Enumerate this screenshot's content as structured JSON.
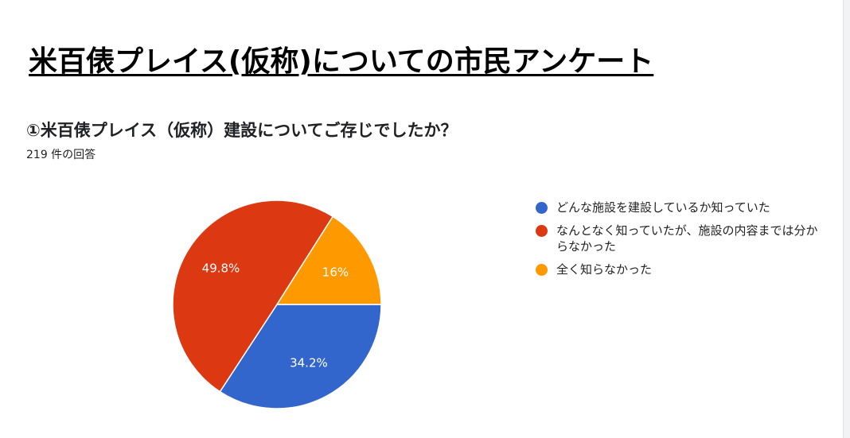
{
  "page": {
    "title": "米百俵プレイス(仮称)についての市民アンケート"
  },
  "question": {
    "text": "①米百俵プレイス（仮称）建設についてご存じでしたか？",
    "response_count": "219 件の回答"
  },
  "chart_data": {
    "type": "pie",
    "title": "",
    "series": [
      {
        "values": [
          34.2,
          49.8,
          16.0
        ]
      }
    ],
    "categories": [
      "どんな施設を建設しているか知っていた",
      "なんとなく知っていたが、施設の内容までは分からなかった",
      "全く知らなかった"
    ],
    "value_labels": [
      "34.2%",
      "49.8%",
      "16%"
    ],
    "colors": [
      "#3366cc",
      "#dc3912",
      "#ff9900"
    ],
    "start_angle": "3 o'clock",
    "direction": "clockwise",
    "legend_position": "right"
  }
}
